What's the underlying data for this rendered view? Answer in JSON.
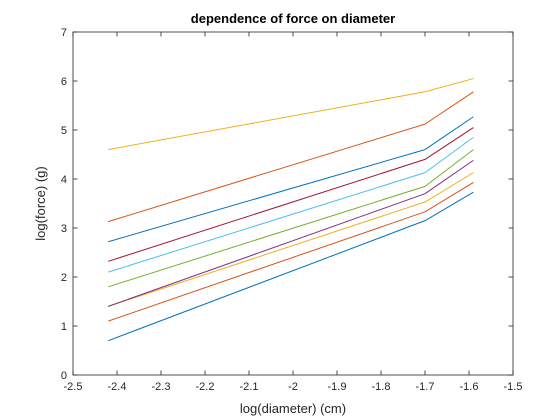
{
  "chart_data": {
    "type": "line",
    "title": "dependence of force on diameter",
    "xlabel": "log(diameter) (cm)",
    "ylabel": "log(force) (g)",
    "xlim": [
      -2.5,
      -1.5
    ],
    "ylim": [
      0,
      7
    ],
    "xticks": [
      -2.5,
      -2.4,
      -2.3,
      -2.2,
      -2.1,
      -2,
      -1.9,
      -1.8,
      -1.7,
      -1.6,
      -1.5
    ],
    "xtick_labels": [
      "-2.5",
      "-2.4",
      "-2.3",
      "-2.2",
      "-2.1",
      "-2",
      "-1.9",
      "-1.8",
      "-1.7",
      "-1.6",
      "-1.5"
    ],
    "yticks": [
      0,
      1,
      2,
      3,
      4,
      5,
      6,
      7
    ],
    "ytick_labels": [
      "0",
      "1",
      "2",
      "3",
      "4",
      "5",
      "6",
      "7"
    ],
    "grid": false,
    "x": [
      -2.42,
      -1.7,
      -1.59
    ],
    "series": [
      {
        "values": [
          0.7,
          3.15,
          3.73
        ],
        "color": "#0072BD"
      },
      {
        "values": [
          1.1,
          3.33,
          3.93
        ],
        "color": "#D95319"
      },
      {
        "values": [
          1.4,
          3.53,
          4.13
        ],
        "color": "#EDB120"
      },
      {
        "values": [
          1.4,
          3.7,
          4.38
        ],
        "color": "#7E2F8E"
      },
      {
        "values": [
          1.8,
          3.85,
          4.6
        ],
        "color": "#77AC30"
      },
      {
        "values": [
          2.1,
          4.13,
          4.85
        ],
        "color": "#4DBEEE"
      },
      {
        "values": [
          2.32,
          4.4,
          5.05
        ],
        "color": "#A2142F"
      },
      {
        "values": [
          2.72,
          4.6,
          5.27
        ],
        "color": "#0072BD"
      },
      {
        "values": [
          3.13,
          5.12,
          5.78
        ],
        "color": "#D95319"
      },
      {
        "values": [
          4.6,
          5.78,
          6.05
        ],
        "color": "#EDB120"
      }
    ]
  }
}
